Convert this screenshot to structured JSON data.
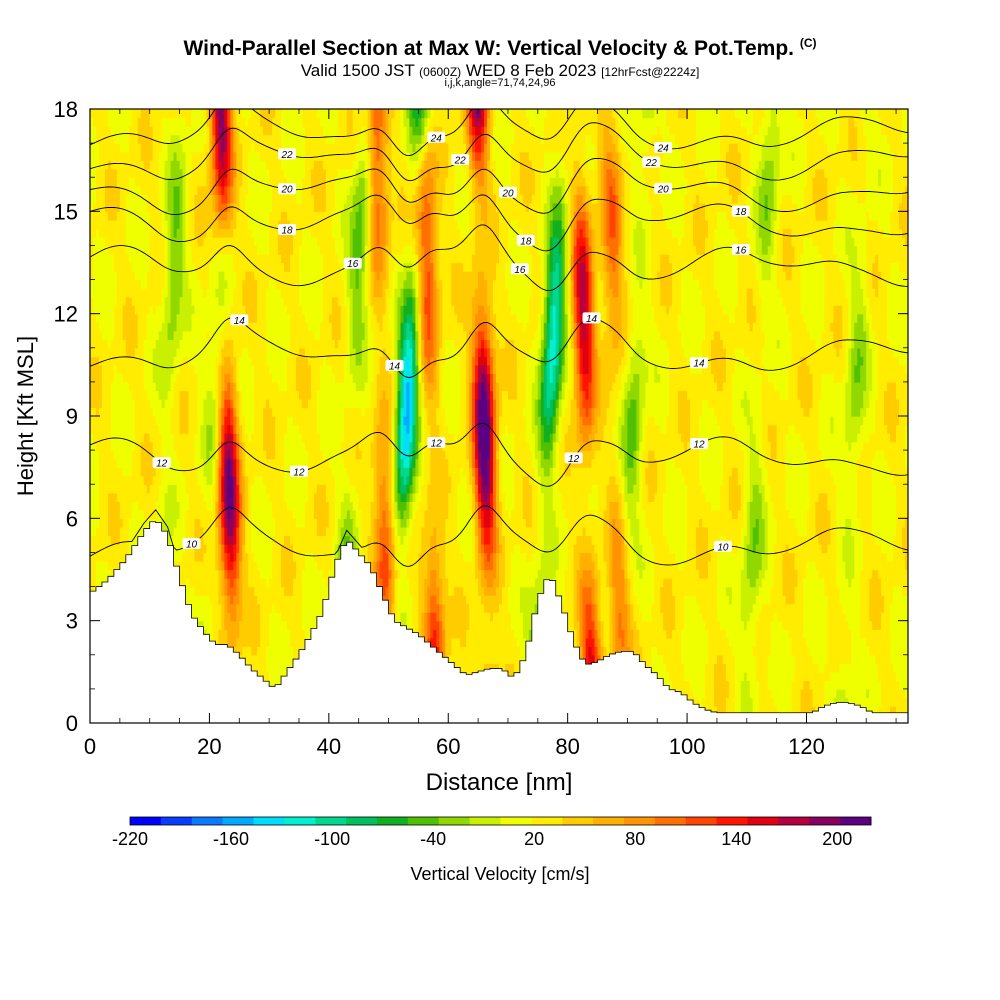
{
  "header": {
    "title": "Wind-Parallel Section at Max W: Vertical Velocity & Pot.Temp.",
    "title_mark": "(C)",
    "valid_prefix": "Valid 1500 JST",
    "valid_utc": "(0600Z)",
    "valid_date": "WED 8 Feb 2023",
    "forecast": "[12hrFcst@2224z]",
    "indices": "i,j,k,angle=71,74,24,96"
  },
  "chart_data": {
    "type": "heatmap",
    "xlabel": "Distance [nm]",
    "ylabel": "Height [Kft MSL]",
    "xlim": [
      0,
      137
    ],
    "ylim": [
      0,
      18
    ],
    "x_ticks": [
      "0",
      "20",
      "40",
      "60",
      "80",
      "100",
      "120"
    ],
    "y_ticks": [
      "0",
      "3",
      "6",
      "9",
      "12",
      "15",
      "18"
    ],
    "colorbar": {
      "label": "Vertical Velocity [cm/s]",
      "range": [
        -220,
        220
      ],
      "tick_labels": [
        "-220",
        "-160",
        "-100",
        "-40",
        "20",
        "80",
        "140",
        "200"
      ],
      "colors": [
        "#0000ff",
        "#0a3cff",
        "#0a78ff",
        "#00aaff",
        "#00ddff",
        "#00f0d0",
        "#00d890",
        "#00c060",
        "#10b020",
        "#50c000",
        "#90d800",
        "#c8f000",
        "#f0ff00",
        "#ffec00",
        "#ffcc00",
        "#ffb000",
        "#ff9400",
        "#ff7000",
        "#ff4400",
        "#ff1400",
        "#e00010",
        "#b40040",
        "#880060",
        "#5a0080"
      ]
    },
    "updraft_cores": [
      {
        "x": 23,
        "w": 180
      },
      {
        "x": 49,
        "w": 100
      },
      {
        "x": 57,
        "w": 110
      },
      {
        "x": 66,
        "w": 210
      },
      {
        "x": 83,
        "w": 150
      },
      {
        "x": 88,
        "w": 80
      }
    ],
    "downdraft_cores": [
      {
        "x": 13,
        "w": -60
      },
      {
        "x": 21,
        "w": -50
      },
      {
        "x": 44,
        "w": -70
      },
      {
        "x": 53,
        "w": -170
      },
      {
        "x": 77,
        "w": -150
      },
      {
        "x": 91,
        "w": -60
      },
      {
        "x": 112,
        "w": -50
      },
      {
        "x": 128,
        "w": -50
      }
    ],
    "terrain": {
      "x": [
        0,
        3,
        6,
        9,
        11,
        13,
        15,
        17,
        19,
        21,
        23,
        25,
        27,
        29,
        31,
        33,
        35,
        37,
        39,
        41,
        43,
        45,
        47,
        49,
        51,
        53,
        55,
        57,
        59,
        61,
        63,
        65,
        67,
        69,
        71,
        73,
        75,
        77,
        79,
        81,
        83,
        85,
        87,
        89,
        91,
        93,
        95,
        97,
        99,
        101,
        103,
        105,
        107,
        109,
        111,
        113,
        115,
        117,
        119,
        121,
        123,
        125,
        127,
        129,
        131,
        133,
        135,
        137
      ],
      "height": [
        3.8,
        4.2,
        4.8,
        5.6,
        6.0,
        5.5,
        4.3,
        3.2,
        2.7,
        2.3,
        2.3,
        2.0,
        1.6,
        1.3,
        1.0,
        1.5,
        2.0,
        2.6,
        3.3,
        4.6,
        5.4,
        5.0,
        4.6,
        3.8,
        3.0,
        2.8,
        2.6,
        2.3,
        2.0,
        1.7,
        1.4,
        1.5,
        1.6,
        1.6,
        1.3,
        2.0,
        3.6,
        4.4,
        3.5,
        2.4,
        1.7,
        1.8,
        2.0,
        2.1,
        2.1,
        1.7,
        1.4,
        1.0,
        0.9,
        0.6,
        0.4,
        0.3,
        0.3,
        0.3,
        0.3,
        0.3,
        0.3,
        0.3,
        0.3,
        0.3,
        0.5,
        0.6,
        0.6,
        0.5,
        0.3,
        0.3,
        0.3,
        0.3
      ]
    },
    "isentropes": [
      {
        "level": "10",
        "base_height": 5.2,
        "label_x": [
          17,
          106
        ]
      },
      {
        "level": "12",
        "base_height": 7.8,
        "label_x": [
          12,
          35,
          58,
          81,
          102
        ]
      },
      {
        "level": "14",
        "base_height": 10.8,
        "label_x": [
          25,
          51,
          84,
          102
        ]
      },
      {
        "level": "16",
        "base_height": 13.4,
        "label_x": [
          44,
          72,
          109
        ]
      },
      {
        "level": "18",
        "base_height": 14.7,
        "label_x": [
          33,
          73,
          109
        ]
      },
      {
        "level": "20",
        "base_height": 15.6,
        "label_x": [
          33,
          70,
          96
        ]
      },
      {
        "level": "22",
        "base_height": 16.5,
        "label_x": [
          33,
          62,
          94
        ]
      },
      {
        "level": "24",
        "base_height": 17.3,
        "label_x": [
          58,
          96
        ]
      }
    ]
  }
}
